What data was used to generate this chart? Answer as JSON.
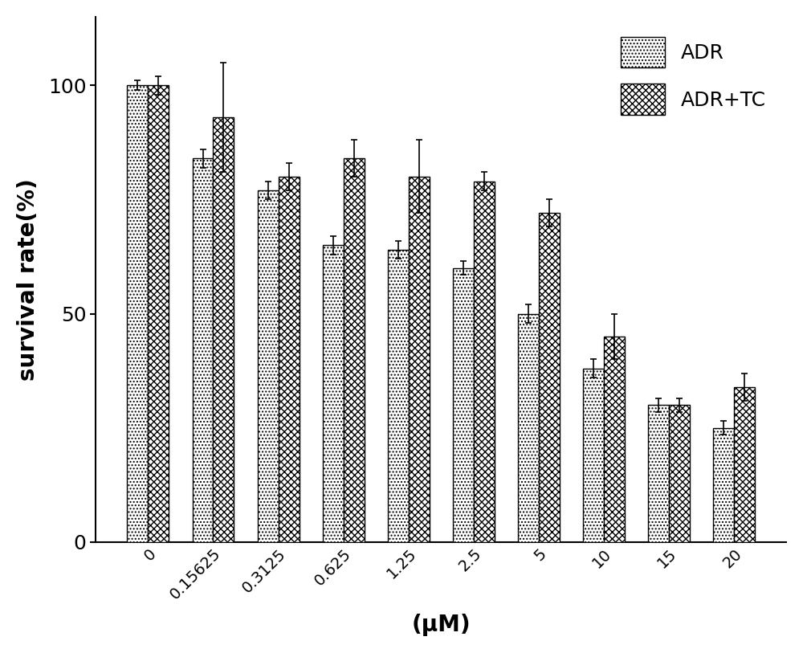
{
  "categories": [
    "0",
    "0.15625",
    "0.3125",
    "0.625",
    "1.25",
    "2.5",
    "5",
    "10",
    "15",
    "20"
  ],
  "adr_values": [
    100,
    84,
    77,
    65,
    64,
    60,
    50,
    38,
    30,
    25
  ],
  "adr_tc_values": [
    100,
    93,
    80,
    84,
    80,
    79,
    72,
    45,
    30,
    34
  ],
  "adr_errors": [
    1.0,
    2.0,
    2.0,
    2.0,
    2.0,
    1.5,
    2.0,
    2.0,
    1.5,
    1.5
  ],
  "adr_tc_errors": [
    2.0,
    12.0,
    3.0,
    4.0,
    8.0,
    2.0,
    3.0,
    5.0,
    1.5,
    3.0
  ],
  "ylabel": "survival rate(%)",
  "xlabel": "(μM)",
  "ylim": [
    0,
    115
  ],
  "yticks": [
    0,
    50,
    100
  ],
  "legend_labels": [
    "ADR",
    "ADR+TC"
  ],
  "bar_width": 0.32,
  "bar_color": "white",
  "bar_edgecolor": "black",
  "figsize": [
    10.0,
    8.13
  ],
  "dpi": 100
}
